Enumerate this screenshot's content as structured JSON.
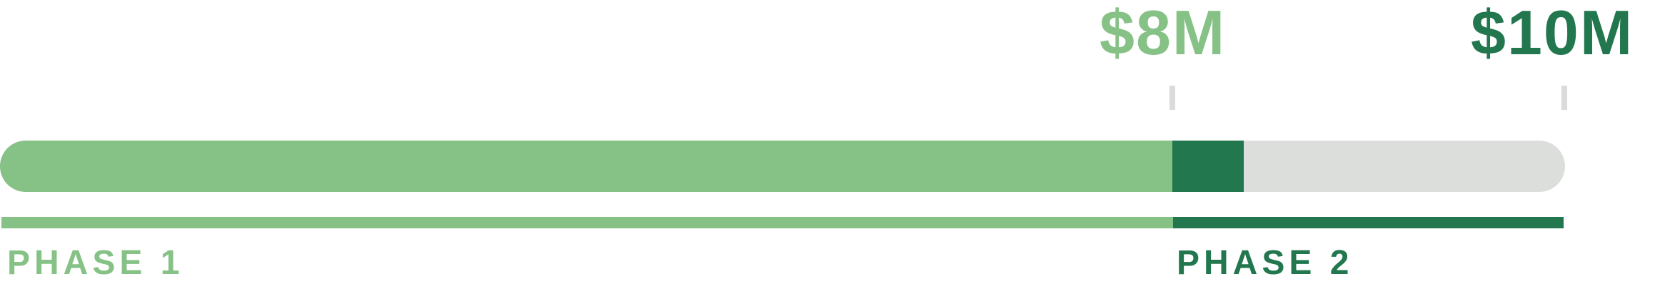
{
  "milestones": {
    "first": {
      "label": "$8M",
      "color": "#86c186"
    },
    "second": {
      "label": "$10M",
      "color": "#22774f"
    }
  },
  "progress": {
    "phase1_fraction": 0.749,
    "phase2_fraction": 0.0455,
    "track_color": "#dcdedc"
  },
  "phases": [
    {
      "label": "PHASE 1",
      "color": "#86c186"
    },
    {
      "label": "PHASE 2",
      "color": "#22774f"
    }
  ]
}
